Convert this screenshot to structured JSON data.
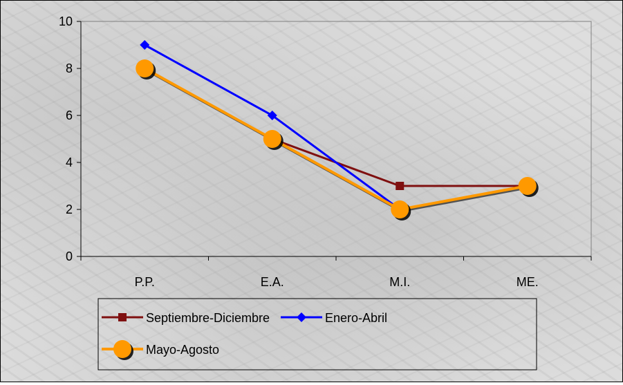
{
  "chart_data": {
    "type": "line",
    "categories": [
      "P.P.",
      "E.A.",
      "M.I.",
      "ME."
    ],
    "ylim": [
      0,
      10
    ],
    "yticks": [
      0,
      2,
      4,
      6,
      8,
      10
    ],
    "grid": false,
    "legend_position": "bottom-left",
    "series": [
      {
        "name": "Septiembre-Diciembre",
        "values": [
          8,
          5,
          3,
          3
        ],
        "color": "#7f1010",
        "marker": "square"
      },
      {
        "name": "Enero-Abril",
        "values": [
          9,
          6,
          2,
          null
        ],
        "color": "#0000ff",
        "marker": "diamond"
      },
      {
        "name": "Mayo-Agosto",
        "values": [
          8,
          5,
          2,
          3
        ],
        "color": "#ff9900",
        "marker": "circle"
      }
    ]
  }
}
